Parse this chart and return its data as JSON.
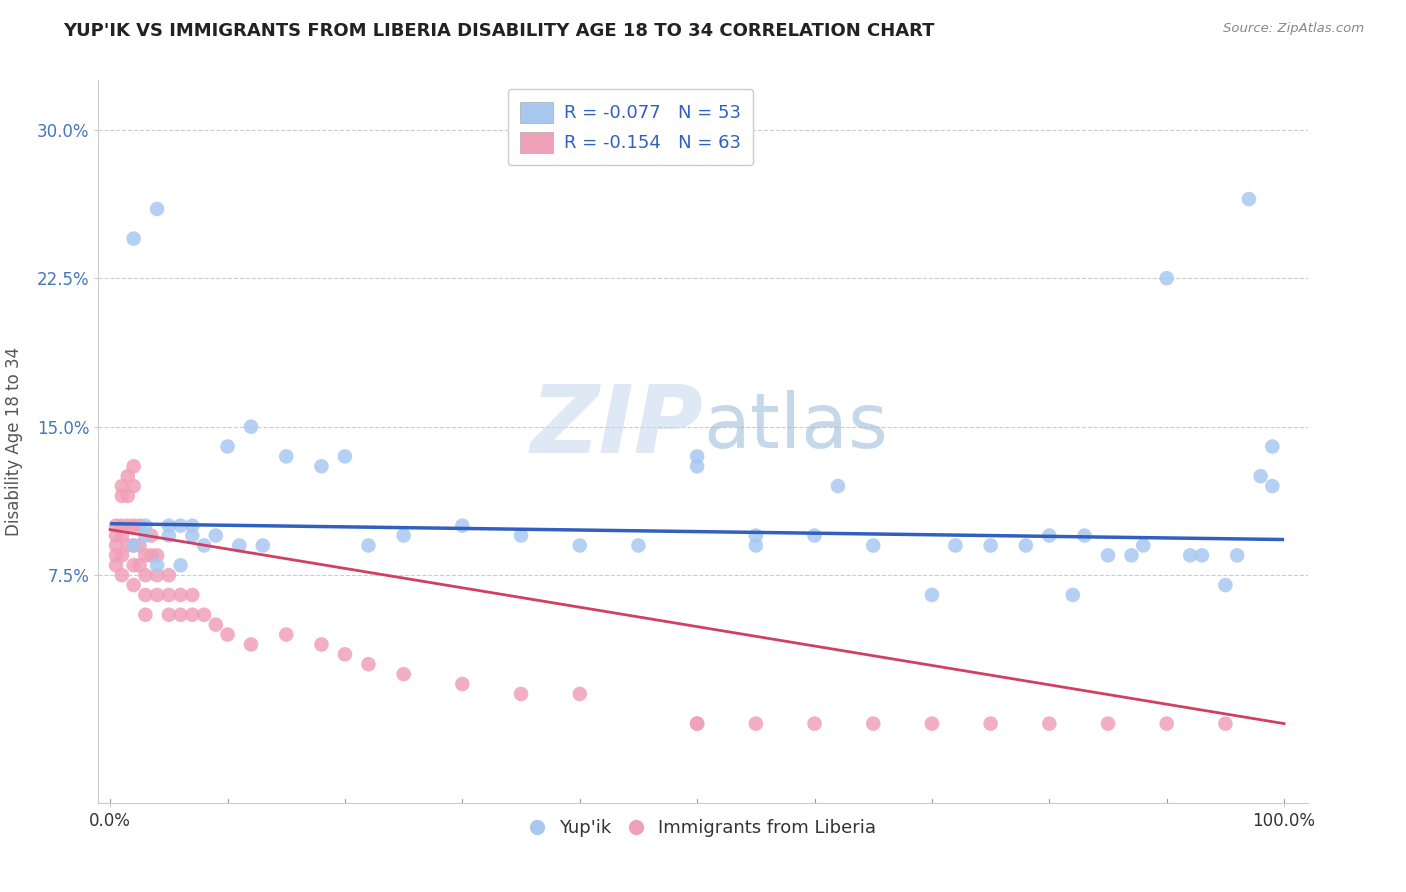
{
  "title": "YUP'IK VS IMMIGRANTS FROM LIBERIA DISABILITY AGE 18 TO 34 CORRELATION CHART",
  "source": "Source: ZipAtlas.com",
  "ylabel": "Disability Age 18 to 34",
  "y_tick_labels": [
    "7.5%",
    "15.0%",
    "22.5%",
    "30.0%"
  ],
  "y_tick_values": [
    0.075,
    0.15,
    0.225,
    0.3
  ],
  "xlim": [
    -0.01,
    1.02
  ],
  "ylim": [
    -0.04,
    0.325
  ],
  "legend_r1": "R = -0.077   N = 53",
  "legend_r2": "R = -0.154   N = 63",
  "series1_color": "#a8c8f0",
  "series2_color": "#f0a0b8",
  "line1_color": "#3060c0",
  "line2_color": "#d04060",
  "background_color": "#ffffff",
  "watermark_text": "ZIPatlas",
  "series1_label": "Yup'ik",
  "series2_label": "Immigrants from Liberia",
  "blue_line_intercept": 0.101,
  "blue_line_slope": -0.008,
  "pink_line_intercept": 0.098,
  "pink_line_slope": -0.098,
  "series1_x": [
    0.02,
    0.03,
    0.03,
    0.04,
    0.05,
    0.05,
    0.06,
    0.07,
    0.07,
    0.08,
    0.09,
    0.1,
    0.11,
    0.12,
    0.13,
    0.15,
    0.18,
    0.2,
    0.22,
    0.25,
    0.3,
    0.35,
    0.4,
    0.45,
    0.5,
    0.5,
    0.55,
    0.55,
    0.6,
    0.62,
    0.65,
    0.7,
    0.72,
    0.75,
    0.78,
    0.8,
    0.82,
    0.83,
    0.85,
    0.87,
    0.88,
    0.9,
    0.92,
    0.93,
    0.95,
    0.96,
    0.97,
    0.98,
    0.99,
    0.99,
    0.02,
    0.04,
    0.06
  ],
  "series1_y": [
    0.245,
    0.095,
    0.1,
    0.26,
    0.095,
    0.1,
    0.1,
    0.1,
    0.095,
    0.09,
    0.095,
    0.14,
    0.09,
    0.15,
    0.09,
    0.135,
    0.13,
    0.135,
    0.09,
    0.095,
    0.1,
    0.095,
    0.09,
    0.09,
    0.13,
    0.135,
    0.09,
    0.095,
    0.095,
    0.12,
    0.09,
    0.065,
    0.09,
    0.09,
    0.09,
    0.095,
    0.065,
    0.095,
    0.085,
    0.085,
    0.09,
    0.225,
    0.085,
    0.085,
    0.07,
    0.085,
    0.265,
    0.125,
    0.14,
    0.12,
    0.09,
    0.08,
    0.08
  ],
  "series2_x": [
    0.005,
    0.005,
    0.005,
    0.005,
    0.005,
    0.01,
    0.01,
    0.01,
    0.01,
    0.01,
    0.01,
    0.015,
    0.015,
    0.015,
    0.015,
    0.02,
    0.02,
    0.02,
    0.02,
    0.02,
    0.02,
    0.025,
    0.025,
    0.025,
    0.03,
    0.03,
    0.03,
    0.03,
    0.035,
    0.035,
    0.04,
    0.04,
    0.04,
    0.05,
    0.05,
    0.05,
    0.06,
    0.06,
    0.07,
    0.07,
    0.08,
    0.09,
    0.1,
    0.12,
    0.15,
    0.18,
    0.2,
    0.22,
    0.25,
    0.3,
    0.35,
    0.4,
    0.5,
    0.55,
    0.6,
    0.65,
    0.7,
    0.75,
    0.8,
    0.85,
    0.9,
    0.95,
    0.5
  ],
  "series2_y": [
    0.1,
    0.095,
    0.09,
    0.085,
    0.08,
    0.12,
    0.115,
    0.1,
    0.095,
    0.085,
    0.075,
    0.125,
    0.115,
    0.1,
    0.09,
    0.13,
    0.12,
    0.1,
    0.09,
    0.08,
    0.07,
    0.1,
    0.09,
    0.08,
    0.085,
    0.075,
    0.065,
    0.055,
    0.095,
    0.085,
    0.085,
    0.075,
    0.065,
    0.075,
    0.065,
    0.055,
    0.065,
    0.055,
    0.065,
    0.055,
    0.055,
    0.05,
    0.045,
    0.04,
    0.045,
    0.04,
    0.035,
    0.03,
    0.025,
    0.02,
    0.015,
    0.015,
    0.0,
    0.0,
    0.0,
    0.0,
    0.0,
    0.0,
    0.0,
    0.0,
    0.0,
    0.0,
    0.0
  ]
}
